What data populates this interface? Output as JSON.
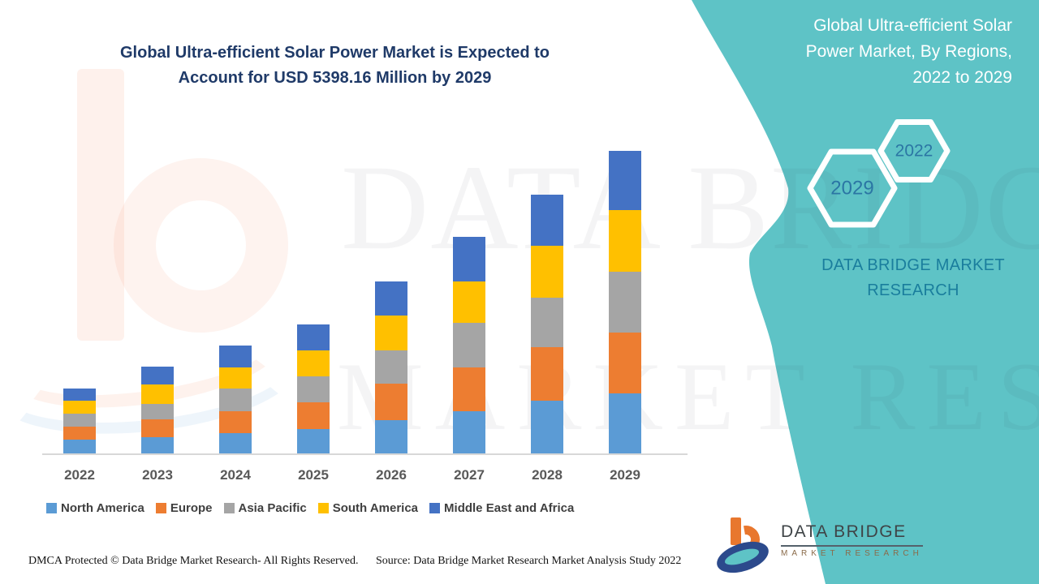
{
  "colors": {
    "teal_background": "#5EC3C6",
    "title_navy": "#1F3A68",
    "hexagon_year_text": "#2B76A4",
    "brand_teal_text": "#1A7E9D",
    "axis_label": "#595959",
    "legend_text": "#3F3F3F"
  },
  "header": {
    "title_lines": [
      "Global Ultra-efficient Solar Power Market is Expected to",
      "Account for USD 5398.16 Million by 2029"
    ]
  },
  "right_panel": {
    "title_lines": [
      "Global Ultra-efficient Solar",
      "Power Market, By Regions,",
      "2022 to 2029"
    ],
    "hexagon_large_label": "2029",
    "hexagon_small_label": "2022",
    "brand_text": "DATA BRIDGE MARKET RESEARCH"
  },
  "watermark": {
    "line1": "DATA BRIDGE",
    "line2": "MARKET RESEARCH"
  },
  "logo": {
    "title": "DATA BRIDGE",
    "subtitle": "MARKET RESEARCH"
  },
  "footer": {
    "dmca": "DMCA Protected © Data Bridge Market Research- All Rights Reserved.",
    "source": "Source: Data Bridge Market Research Market Analysis Study 2022"
  },
  "chart_data": {
    "type": "bar",
    "stacked": true,
    "title": "Global Ultra-efficient Solar Power Market is Expected to Account for USD 5398.16 Million by 2029",
    "unit": "USD Million",
    "categories": [
      "2022",
      "2023",
      "2024",
      "2025",
      "2026",
      "2027",
      "2028",
      "2029"
    ],
    "series": [
      {
        "name": "North America",
        "color": "#5B9BD5",
        "values": [
          255,
          299,
          369,
          443,
          600,
          769,
          947,
          1082
        ]
      },
      {
        "name": "Europe",
        "color": "#ED7D31",
        "values": [
          241,
          322,
          400,
          481,
          649,
          779,
          952,
          1082
        ]
      },
      {
        "name": "Asia Pacific",
        "color": "#A5A5A5",
        "values": [
          227,
          279,
          394,
          457,
          592,
          784,
          890,
          1082
        ]
      },
      {
        "name": "South America",
        "color": "#FFC000",
        "values": [
          231,
          346,
          385,
          472,
          626,
          746,
          913,
          1096
        ]
      },
      {
        "name": "Middle East and Africa",
        "color": "#4472C4",
        "values": [
          216,
          317,
          385,
          457,
          610,
          794,
          915,
          1056.16
        ]
      }
    ],
    "totals": [
      1170,
      1563,
      1933,
      2310,
      3077,
      3872,
      4617,
      5398.16
    ],
    "y_axis_visible": false,
    "grid": false,
    "legend_position": "bottom"
  }
}
